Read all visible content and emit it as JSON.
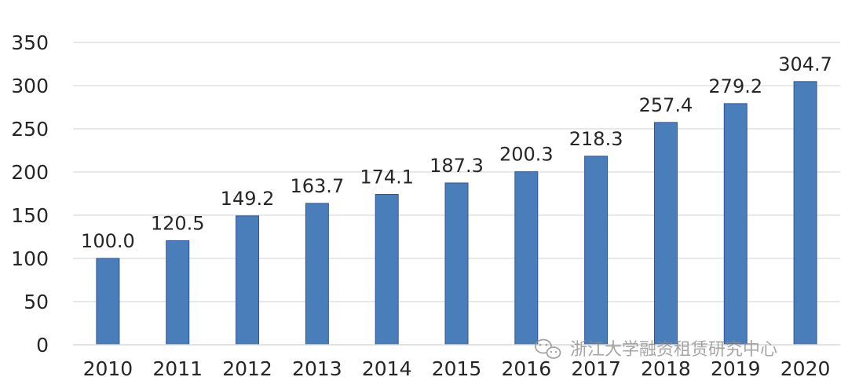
{
  "chart_data": {
    "type": "bar",
    "categories": [
      "2010",
      "2011",
      "2012",
      "2013",
      "2014",
      "2015",
      "2016",
      "2017",
      "2018",
      "2019",
      "2020"
    ],
    "values": [
      100.0,
      120.5,
      149.2,
      163.7,
      174.1,
      187.3,
      200.3,
      218.3,
      257.4,
      279.2,
      304.7
    ],
    "data_labels": [
      "100.0",
      "120.5",
      "149.2",
      "163.7",
      "174.1",
      "187.3",
      "200.3",
      "218.3",
      "257.4",
      "279.2",
      "304.7"
    ],
    "y_ticks": [
      "0",
      "50",
      "100",
      "150",
      "200",
      "250",
      "300",
      "350"
    ],
    "ylim": [
      0,
      350
    ],
    "grid": true,
    "bar_color": "#4a7ebb",
    "title": "",
    "xlabel": "",
    "ylabel": ""
  },
  "watermark": {
    "text": "浙江大学融资租赁研究中心",
    "icon": "wechat-icon"
  }
}
